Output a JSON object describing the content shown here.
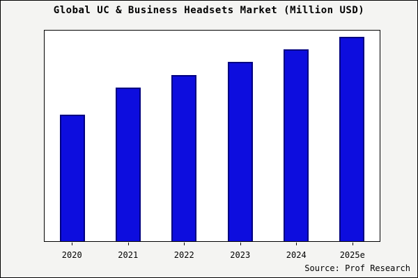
{
  "title": "Global UC & Business Headsets Market (Million USD)",
  "source": "Source: Prof Research",
  "colors": {
    "bar_fill": "#0d0dde",
    "bar_border": "#000080",
    "background": "#f4f4f2",
    "plot_background": "#ffffff"
  },
  "chart_data": {
    "type": "bar",
    "title": "Global UC & Business Headsets Market (Million USD)",
    "categories": [
      "2020",
      "2021",
      "2022",
      "2023",
      "2024",
      "2025e"
    ],
    "values": [
      60,
      73,
      79,
      85,
      91,
      97
    ],
    "xlabel": "",
    "ylabel": "",
    "ylim": [
      0,
      100
    ],
    "grid": false,
    "legend": false,
    "note": "y-axis has no tick labels; values are estimated relative heights (percent of plot height)"
  }
}
